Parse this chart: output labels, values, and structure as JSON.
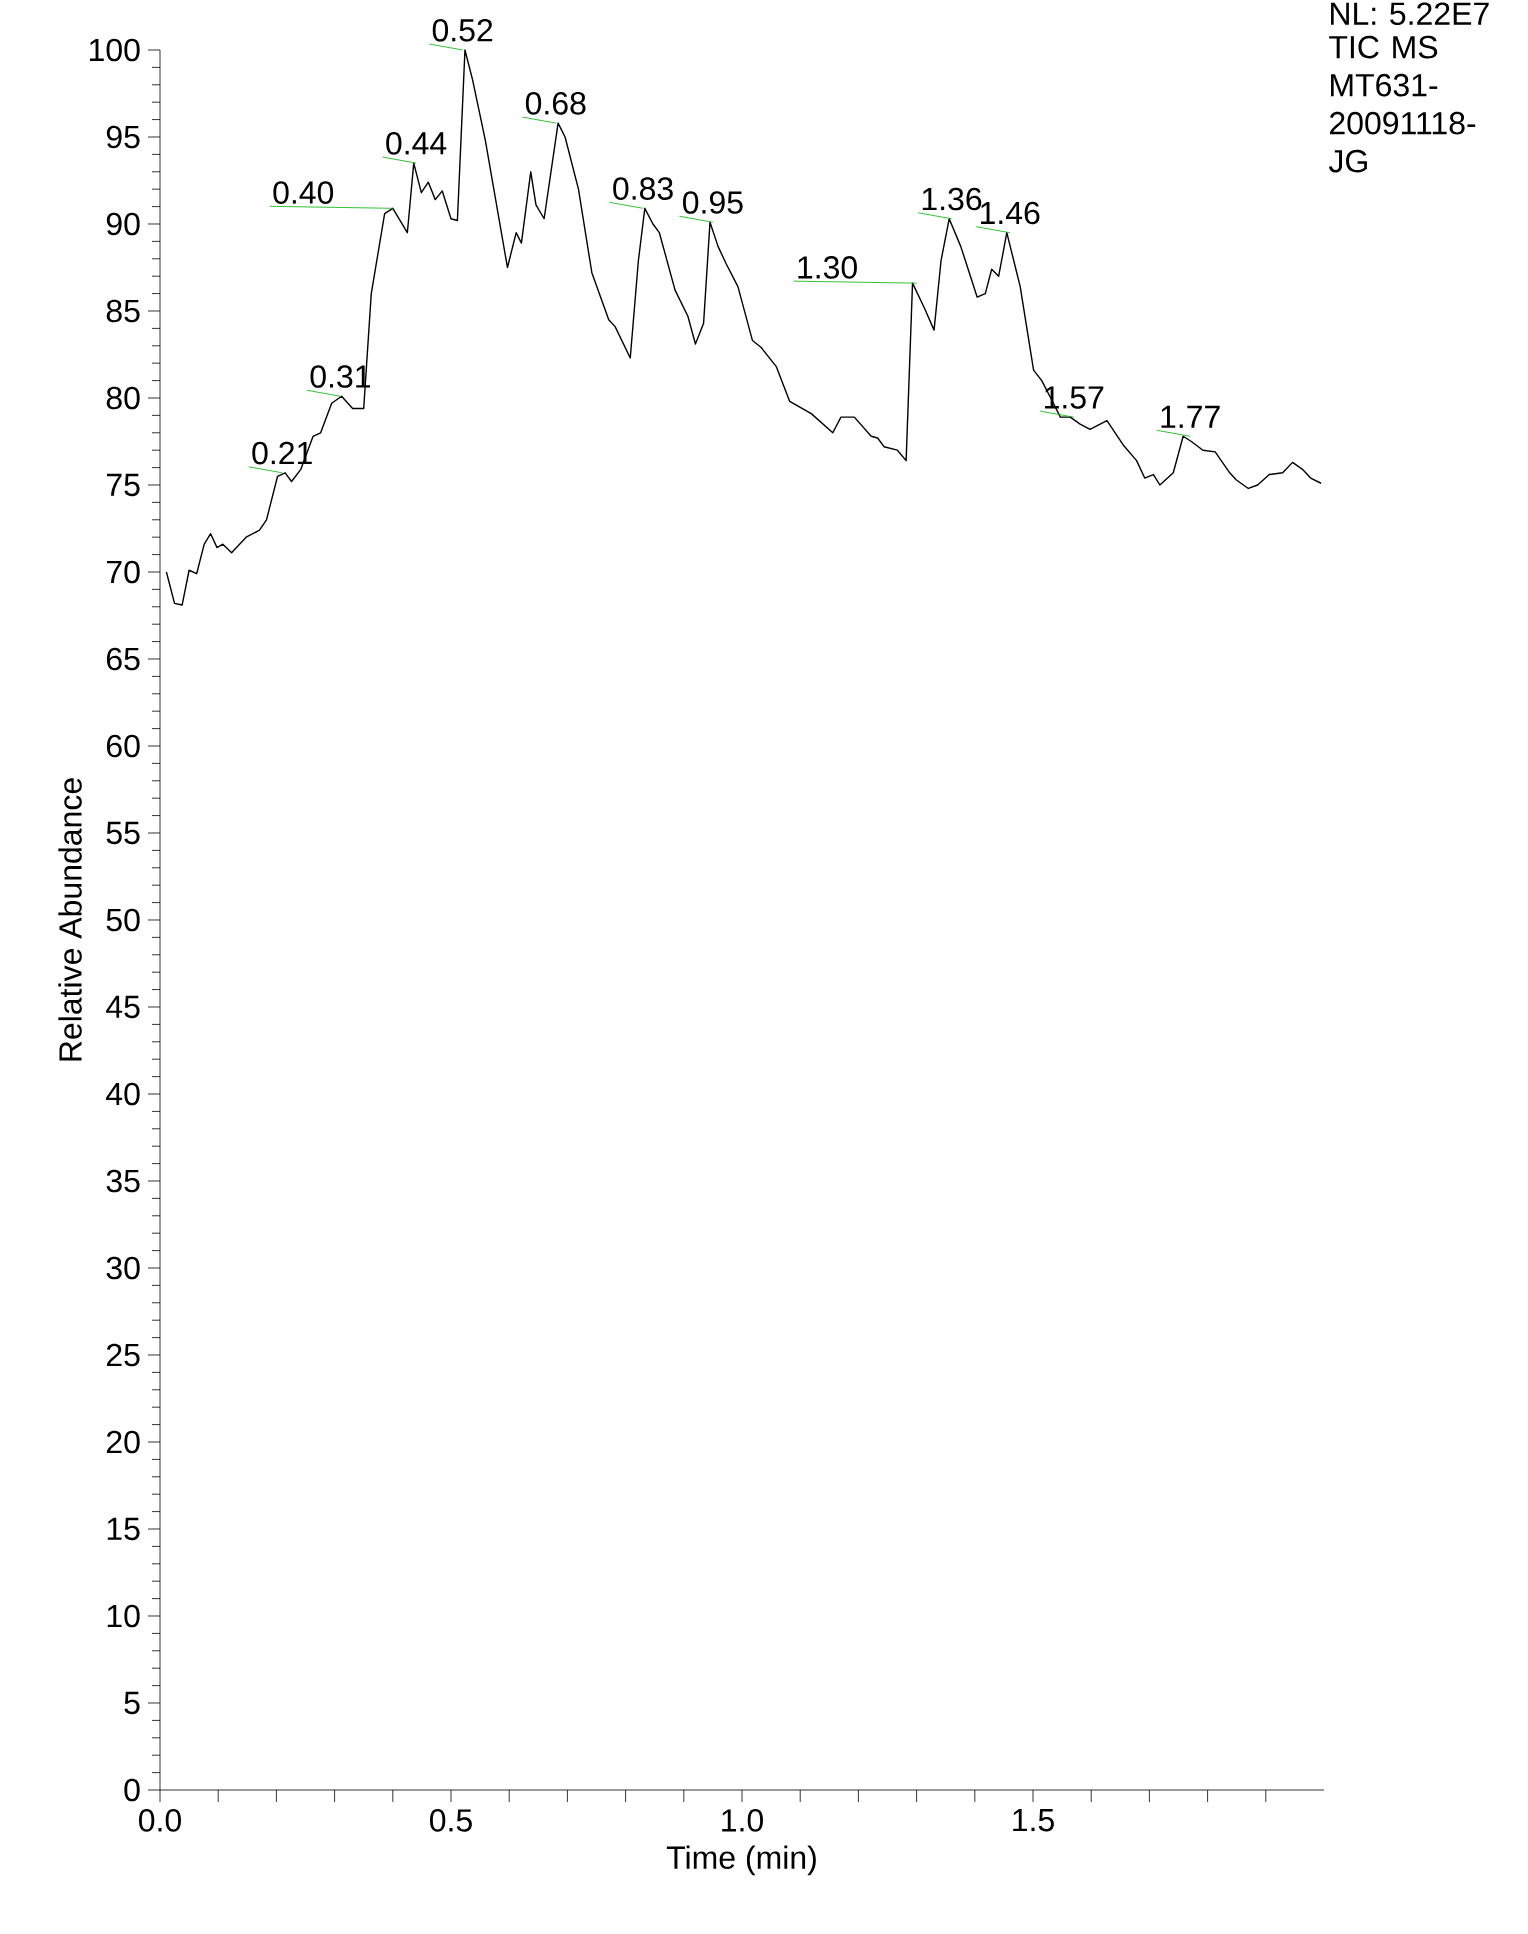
{
  "chart_data": {
    "type": "line",
    "xlabel": "Time (min)",
    "ylabel": "Relative Abundance",
    "xlim": [
      0,
      2.0
    ],
    "ylim": [
      0,
      100
    ],
    "xticks": [
      {
        "value": 0,
        "label": "0.0"
      },
      {
        "value": 0.1,
        "label": null
      },
      {
        "value": 0.2,
        "label": null
      },
      {
        "value": 0.3,
        "label": null
      },
      {
        "value": 0.4,
        "label": null
      },
      0.5,
      {
        "value": 0.6,
        "label": null
      },
      {
        "value": 0.7,
        "label": null
      },
      {
        "value": 0.8,
        "label": null
      },
      {
        "value": 0.9,
        "label": null
      },
      {
        "value": 1,
        "label": "1.0"
      },
      {
        "value": 1.1,
        "label": null
      },
      {
        "value": 1.2,
        "label": null
      },
      {
        "value": 1.3,
        "label": null
      },
      {
        "value": 1.4,
        "label": null
      },
      1.5,
      {
        "value": 1.6,
        "label": null
      },
      {
        "value": 1.7,
        "label": null
      },
      {
        "value": 1.8,
        "label": null
      },
      {
        "value": 1.9,
        "label": null
      }
    ],
    "yticks": [
      0,
      5,
      10,
      15,
      20,
      25,
      30,
      35,
      40,
      45,
      50,
      55,
      60,
      65,
      70,
      75,
      80,
      85,
      90,
      95,
      100
    ],
    "grid": false,
    "series": [
      {
        "color": "#000000",
        "x": [
          0.011,
          0.025,
          0.038,
          0.05,
          0.063,
          0.076,
          0.087,
          0.098,
          0.108,
          0.123,
          0.148,
          0.171,
          0.183,
          0.202,
          0.215,
          0.226,
          0.242,
          0.263,
          0.276,
          0.295,
          0.312,
          0.331,
          0.35,
          0.363,
          0.386,
          0.4,
          0.425,
          0.436,
          0.449,
          0.461,
          0.473,
          0.485,
          0.5,
          0.511,
          0.524,
          0.537,
          0.559,
          0.597,
          0.612,
          0.621,
          0.637,
          0.646,
          0.66,
          0.684,
          0.696,
          0.719,
          0.742,
          0.771,
          0.782,
          0.808,
          0.822,
          0.833,
          0.847,
          0.858,
          0.885,
          0.907,
          0.92,
          0.934,
          0.945,
          0.959,
          0.973,
          0.993,
          1.018,
          1.033,
          1.059,
          1.082,
          1.119,
          1.156,
          1.17,
          1.193,
          1.222,
          1.233,
          1.244,
          1.267,
          1.282,
          1.293,
          1.313,
          1.33,
          1.342,
          1.356,
          1.376,
          1.404,
          1.418,
          1.429,
          1.441,
          1.455,
          1.478,
          1.501,
          1.515,
          1.532,
          1.547,
          1.564,
          1.581,
          1.598,
          1.627,
          1.655,
          1.678,
          1.692,
          1.707,
          1.718,
          1.741,
          1.758,
          1.772,
          1.792,
          1.813,
          1.838,
          1.849,
          1.87,
          1.886,
          1.906,
          1.929,
          1.946,
          1.963,
          1.977,
          1.995
        ],
        "values": [
          70.0,
          68.2,
          68.1,
          70.1,
          69.9,
          71.6,
          72.2,
          71.4,
          71.6,
          71.1,
          72.0,
          72.4,
          73.0,
          75.5,
          75.7,
          75.2,
          75.9,
          77.8,
          78.0,
          79.7,
          80.1,
          79.4,
          79.4,
          86.0,
          90.6,
          90.9,
          89.5,
          93.5,
          91.8,
          92.4,
          91.4,
          91.9,
          90.3,
          90.2,
          100,
          98.3,
          94.8,
          87.5,
          89.5,
          88.9,
          93.0,
          91.1,
          90.3,
          95.8,
          95.0,
          92.0,
          87.2,
          84.5,
          84.1,
          82.3,
          87.9,
          90.9,
          90.0,
          89.5,
          86.2,
          84.7,
          83.1,
          84.3,
          90.1,
          88.7,
          87.7,
          86.4,
          83.3,
          82.9,
          81.8,
          79.8,
          79.1,
          78.0,
          78.9,
          78.9,
          77.8,
          77.7,
          77.2,
          77.0,
          76.4,
          86.6,
          85.2,
          83.9,
          87.9,
          90.3,
          88.7,
          85.8,
          86.0,
          87.4,
          87.0,
          89.5,
          86.4,
          81.6,
          81.0,
          79.9,
          78.9,
          78.9,
          78.5,
          78.2,
          78.7,
          77.3,
          76.4,
          75.4,
          75.6,
          75.0,
          75.7,
          77.8,
          77.5,
          77.0,
          76.9,
          75.7,
          75.3,
          74.8,
          75.0,
          75.6,
          75.7,
          76.3,
          75.9,
          75.4,
          75.1
        ]
      }
    ],
    "annotations": [
      {
        "text": "0.21",
        "x": 0.21,
        "y": 75.7
      },
      {
        "text": "0.31",
        "x": 0.31,
        "y": 80.1
      },
      {
        "text": "0.40",
        "x": 0.4,
        "y": 90.9
      },
      {
        "text": "0.44",
        "x": 0.44,
        "y": 93.5
      },
      {
        "text": "0.52",
        "x": 0.52,
        "y": 100
      },
      {
        "text": "0.68",
        "x": 0.68,
        "y": 95.8
      },
      {
        "text": "0.83",
        "x": 0.83,
        "y": 90.9
      },
      {
        "text": "0.95",
        "x": 0.95,
        "y": 90.1
      },
      {
        "text": "1.30",
        "x": 1.3,
        "y": 86.6
      },
      {
        "text": "1.36",
        "x": 1.36,
        "y": 90.3
      },
      {
        "text": "1.46",
        "x": 1.46,
        "y": 89.5
      },
      {
        "text": "1.57",
        "x": 1.57,
        "y": 78.9
      },
      {
        "text": "1.77",
        "x": 1.77,
        "y": 77.8
      },
      "NL: 5.22E7",
      "TIC MS MT631-20091118-JG"
    ]
  }
}
